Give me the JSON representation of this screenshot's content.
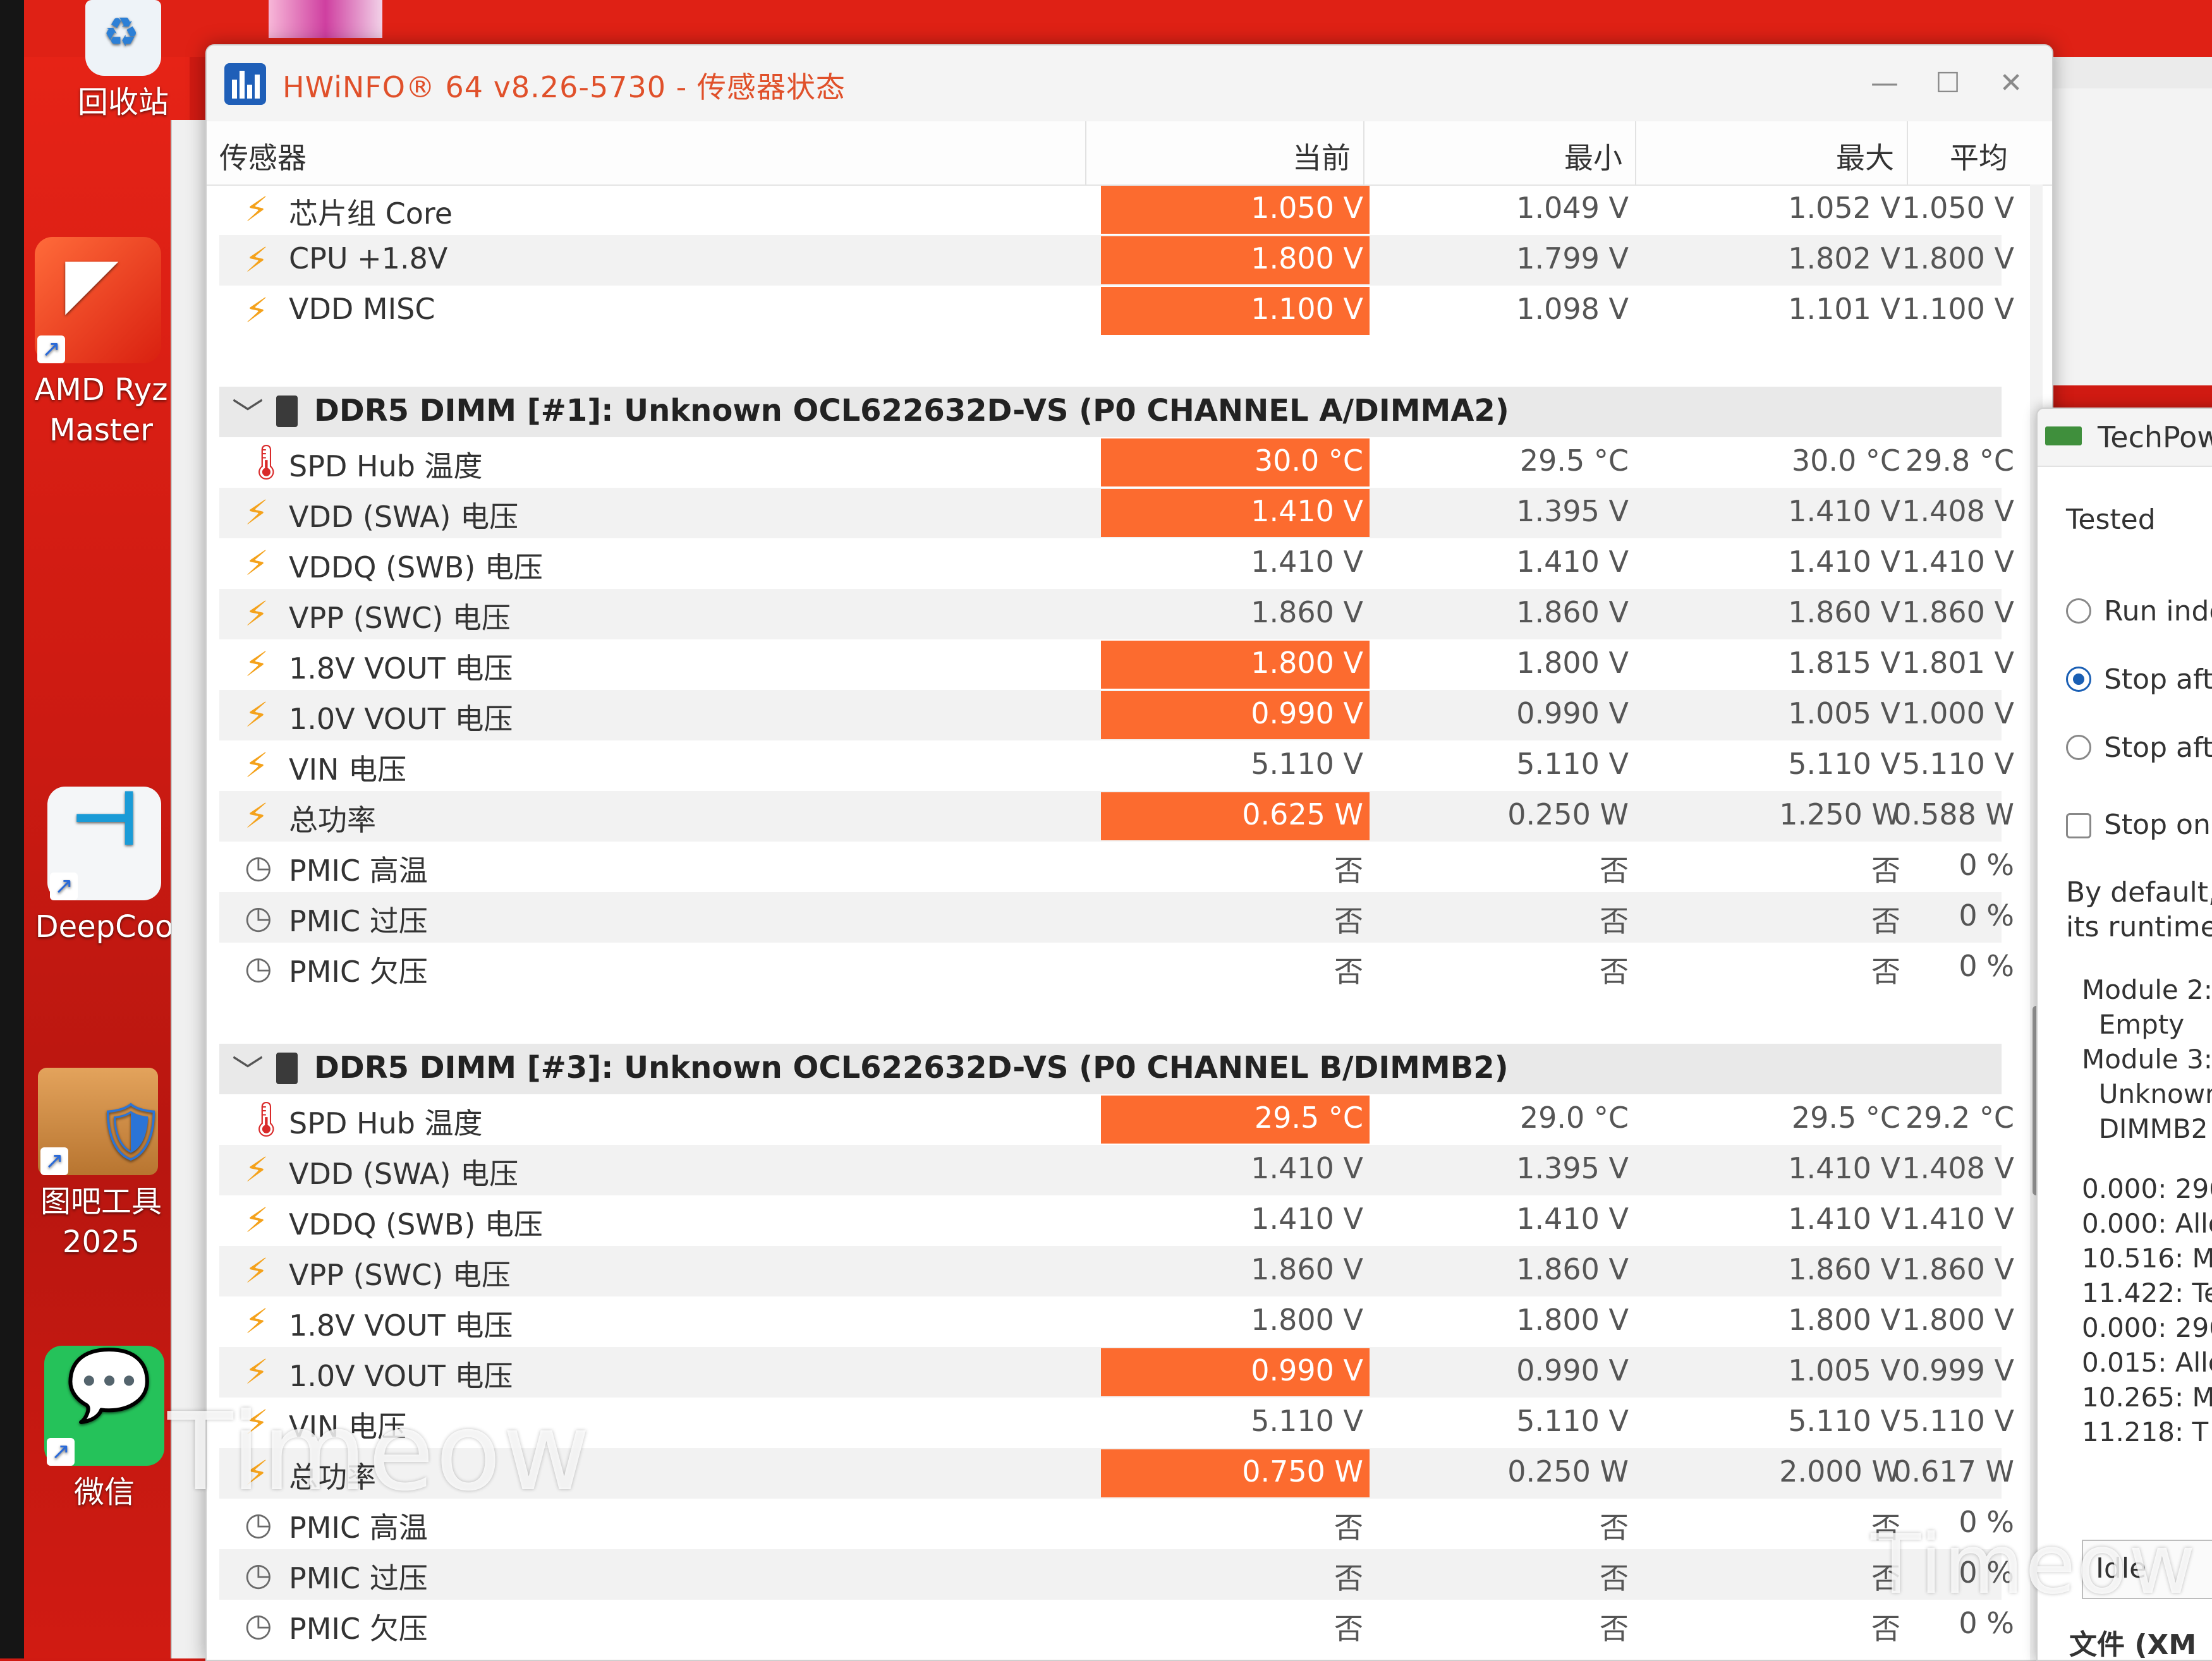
{
  "desktop": {
    "icons": [
      {
        "label": "回收站"
      },
      {
        "label": "AMD Ryz Master"
      },
      {
        "label": "DeepCoo"
      },
      {
        "label": "图吧工具 2025"
      },
      {
        "label": "微信"
      }
    ]
  },
  "window": {
    "title": "HWiNFO® 64 v8.26-5730 - 传感器状态",
    "minimize": "—",
    "maximize": "☐",
    "close": "✕"
  },
  "columns": {
    "sensor": "传感器",
    "current": "当前",
    "min": "最小",
    "max": "最大",
    "avg": "平均"
  },
  "top_rows": [
    {
      "icon": "volt",
      "name": "芯片组 Core",
      "current": "1.050 V",
      "min": "1.049 V",
      "max": "1.052 V",
      "avg": "1.050 V",
      "highlight": true
    },
    {
      "icon": "volt",
      "name": "CPU +1.8V",
      "current": "1.800 V",
      "min": "1.799 V",
      "max": "1.802 V",
      "avg": "1.800 V",
      "highlight": true
    },
    {
      "icon": "volt",
      "name": "VDD MISC",
      "current": "1.100 V",
      "min": "1.098 V",
      "max": "1.101 V",
      "avg": "1.100 V",
      "highlight": true
    }
  ],
  "groups": [
    {
      "title": "DDR5 DIMM [#1]: Unknown OCL622632D-VS (P0 CHANNEL A/DIMMA2)",
      "rows": [
        {
          "icon": "temp",
          "name": "SPD Hub 温度",
          "current": "30.0 °C",
          "min": "29.5 °C",
          "max": "30.0 °C",
          "avg": "29.8 °C",
          "highlight": true
        },
        {
          "icon": "volt",
          "name": "VDD (SWA) 电压",
          "current": "1.410 V",
          "min": "1.395 V",
          "max": "1.410 V",
          "avg": "1.408 V",
          "highlight": true
        },
        {
          "icon": "volt",
          "name": "VDDQ (SWB) 电压",
          "current": "1.410 V",
          "min": "1.410 V",
          "max": "1.410 V",
          "avg": "1.410 V",
          "highlight": false
        },
        {
          "icon": "volt",
          "name": "VPP (SWC) 电压",
          "current": "1.860 V",
          "min": "1.860 V",
          "max": "1.860 V",
          "avg": "1.860 V",
          "highlight": false
        },
        {
          "icon": "volt",
          "name": "1.8V VOUT 电压",
          "current": "1.800 V",
          "min": "1.800 V",
          "max": "1.815 V",
          "avg": "1.801 V",
          "highlight": true
        },
        {
          "icon": "volt",
          "name": "1.0V VOUT 电压",
          "current": "0.990 V",
          "min": "0.990 V",
          "max": "1.005 V",
          "avg": "1.000 V",
          "highlight": true
        },
        {
          "icon": "volt",
          "name": "VIN 电压",
          "current": "5.110 V",
          "min": "5.110 V",
          "max": "5.110 V",
          "avg": "5.110 V",
          "highlight": false
        },
        {
          "icon": "volt",
          "name": "总功率",
          "current": "0.625 W",
          "min": "0.250 W",
          "max": "1.250 W",
          "avg": "0.588 W",
          "highlight": true
        },
        {
          "icon": "clock",
          "name": "PMIC 高温",
          "current": "否",
          "min": "否",
          "max": "否",
          "avg": "0 %",
          "highlight": false
        },
        {
          "icon": "clock",
          "name": "PMIC 过压",
          "current": "否",
          "min": "否",
          "max": "否",
          "avg": "0 %",
          "highlight": false
        },
        {
          "icon": "clock",
          "name": "PMIC 欠压",
          "current": "否",
          "min": "否",
          "max": "否",
          "avg": "0 %",
          "highlight": false
        }
      ]
    },
    {
      "title": "DDR5 DIMM [#3]: Unknown OCL622632D-VS (P0 CHANNEL B/DIMMB2)",
      "rows": [
        {
          "icon": "temp",
          "name": "SPD Hub 温度",
          "current": "29.5 °C",
          "min": "29.0 °C",
          "max": "29.5 °C",
          "avg": "29.2 °C",
          "highlight": true
        },
        {
          "icon": "volt",
          "name": "VDD (SWA) 电压",
          "current": "1.410 V",
          "min": "1.395 V",
          "max": "1.410 V",
          "avg": "1.408 V",
          "highlight": false
        },
        {
          "icon": "volt",
          "name": "VDDQ (SWB) 电压",
          "current": "1.410 V",
          "min": "1.410 V",
          "max": "1.410 V",
          "avg": "1.410 V",
          "highlight": false
        },
        {
          "icon": "volt",
          "name": "VPP (SWC) 电压",
          "current": "1.860 V",
          "min": "1.860 V",
          "max": "1.860 V",
          "avg": "1.860 V",
          "highlight": false
        },
        {
          "icon": "volt",
          "name": "1.8V VOUT 电压",
          "current": "1.800 V",
          "min": "1.800 V",
          "max": "1.800 V",
          "avg": "1.800 V",
          "highlight": false
        },
        {
          "icon": "volt",
          "name": "1.0V VOUT 电压",
          "current": "0.990 V",
          "min": "0.990 V",
          "max": "1.005 V",
          "avg": "0.999 V",
          "highlight": true
        },
        {
          "icon": "volt",
          "name": "VIN 电压",
          "current": "5.110 V",
          "min": "5.110 V",
          "max": "5.110 V",
          "avg": "5.110 V",
          "highlight": false
        },
        {
          "icon": "volt",
          "name": "总功率",
          "current": "0.750 W",
          "min": "0.250 W",
          "max": "2.000 W",
          "avg": "0.617 W",
          "highlight": true
        },
        {
          "icon": "clock",
          "name": "PMIC 高温",
          "current": "否",
          "min": "否",
          "max": "否",
          "avg": "0 %",
          "highlight": false
        },
        {
          "icon": "clock",
          "name": "PMIC 过压",
          "current": "否",
          "min": "否",
          "max": "否",
          "avg": "0 %",
          "highlight": false
        },
        {
          "icon": "clock",
          "name": "PMIC 欠压",
          "current": "否",
          "min": "否",
          "max": "否",
          "avg": "0 %",
          "highlight": false
        }
      ]
    }
  ],
  "techpowerup": {
    "title": "TechPow",
    "tested": "Tested",
    "options": [
      {
        "label": "Run inde",
        "selected": false
      },
      {
        "label": "Stop afte",
        "selected": true
      },
      {
        "label": "Stop afte",
        "selected": false
      }
    ],
    "checkbox_label": "Stop on",
    "desc_line1": "By default,",
    "desc_line2": "its runtime.",
    "log": [
      "Module 2:",
      "  Empty",
      "Module 3:",
      "  Unknown",
      "  DIMMB2",
      "",
      "0.000: 296",
      "0.000: Allo",
      "10.516: M",
      "11.422: Te",
      "0.000: 296",
      "0.015: Allo",
      "10.265: M",
      "11.218: T"
    ],
    "status": "Idle",
    "footer": "文件 (XM"
  },
  "watermarks": [
    "Timeow",
    "Timeow"
  ]
}
